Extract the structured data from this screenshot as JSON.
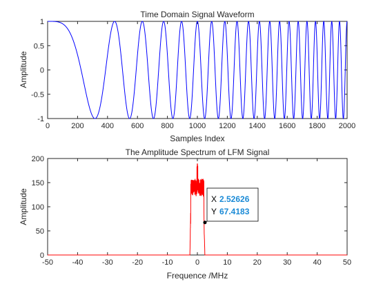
{
  "chart_data": [
    {
      "type": "line",
      "title": "Time Domain Signal Waveform",
      "xlabel": "Samples Index",
      "ylabel": "Amplitude",
      "xlim": [
        0,
        2000
      ],
      "ylim": [
        -1,
        1
      ],
      "xticks": [
        "0",
        "200",
        "400",
        "600",
        "800",
        "1000",
        "1200",
        "1400",
        "1600",
        "1800",
        "2000"
      ],
      "yticks": [
        "-1",
        "-0.5",
        "0",
        "0.5",
        "1"
      ],
      "signal": "LFM chirp, cos(pi*k*n^2)",
      "series": [
        {
          "color": "#0000ff",
          "x_start": 0,
          "x_end": 2000,
          "chirp_rate_k": 1e-05,
          "amplitude": 1
        }
      ],
      "grid": false
    },
    {
      "type": "line",
      "title": "The Amplitude Spectrum of LFM Signal",
      "xlabel": "Frequence /MHz",
      "ylabel": "Amplitude",
      "xlim": [
        -50,
        50
      ],
      "ylim": [
        0,
        200
      ],
      "xticks": [
        "-50",
        "-40",
        "-30",
        "-20",
        "-10",
        "0",
        "10",
        "20",
        "30",
        "40",
        "50"
      ],
      "yticks": [
        "0",
        "50",
        "100",
        "150",
        "200"
      ],
      "series": [
        {
          "color": "#ff0000",
          "band": [
            -2.2,
            2.2
          ],
          "plateau_mean": 140,
          "plateau_ripple": 18,
          "peak": 190
        }
      ],
      "datatip": {
        "x_label": "X",
        "x_value": "2.52626",
        "y_label": "Y",
        "y_value": "67.4183"
      },
      "grid": false
    }
  ]
}
